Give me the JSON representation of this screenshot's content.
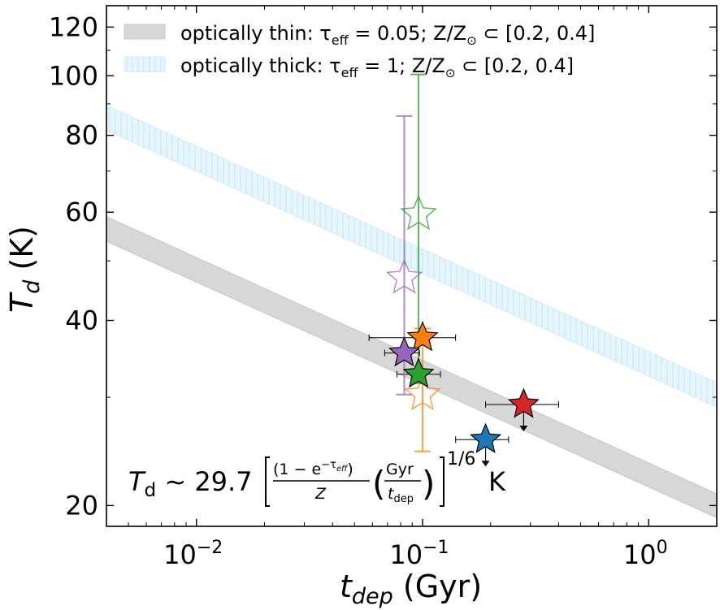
{
  "chart_data": {
    "type": "scatter",
    "x_scale": "log",
    "y_scale": "log",
    "xlim": [
      0.004,
      2.0
    ],
    "ylim": [
      18.5,
      130
    ],
    "x_ticks": [
      {
        "value": 0.01,
        "base": "10",
        "exp": "−2"
      },
      {
        "value": 0.1,
        "base": "10",
        "exp": "−1"
      },
      {
        "value": 1.0,
        "base": "10",
        "exp": "0"
      }
    ],
    "y_ticks": [
      20,
      40,
      60,
      80,
      100,
      120
    ],
    "y_tick_labels": [
      "20",
      "40",
      "60",
      "80",
      "100",
      "120"
    ],
    "xlabel": {
      "main": "t",
      "sub": "dep",
      "unit": " (Gyr)"
    },
    "ylabel": {
      "main": "T",
      "sub": "d",
      "unit": " (K)"
    },
    "legend": {
      "placement": "top-left",
      "entries": [
        {
          "label": "optically thin: τ",
          "sub": "eff",
          "rest": " = 0.05; Z/Z",
          "sun": "⊙",
          "tail": " ⊂ [0.2, 0.4]",
          "color": "#d7d7d7"
        },
        {
          "label": "optically thick: τ",
          "sub": "eff",
          "rest": " = 1; Z/Z",
          "sun": "⊙",
          "tail": " ⊂ [0.2, 0.4]",
          "color": "#e3f4fd"
        }
      ]
    },
    "bands": [
      {
        "name": "optically thin",
        "x": [
          0.004,
          2.0
        ],
        "y_low": [
          53.8,
          19.1
        ],
        "y_high": [
          59.0,
          20.9
        ],
        "color": "#d7d7d7"
      },
      {
        "name": "optically thick",
        "x": [
          0.004,
          2.0
        ],
        "y_low": [
          81.5,
          28.9
        ],
        "y_high": [
          89.5,
          31.7
        ],
        "color": "#e3f4fd"
      }
    ],
    "points": [
      {
        "name": "blue",
        "color": "#1f77b4",
        "x": 0.19,
        "y": 25.6,
        "xerr": [
          0.14,
          0.24
        ],
        "upper_limit": true
      },
      {
        "name": "orange",
        "color": "#ff7f0e",
        "x": 0.1,
        "y": 37.5,
        "xerr": [
          0.058,
          0.14
        ],
        "yerr": [
          24.5,
          38.8
        ],
        "hollow_y": 30.3
      },
      {
        "name": "green",
        "color": "#2ca02c",
        "x": 0.096,
        "y": 32.7,
        "xerr": [
          0.077,
          0.12
        ],
        "yerr": [
          31.6,
          100.5
        ],
        "hollow_y": 59.5
      },
      {
        "name": "red",
        "color": "#d62728",
        "x": 0.28,
        "y": 29.2,
        "xerr": [
          0.19,
          0.4
        ],
        "upper_limit": true
      },
      {
        "name": "purple",
        "color": "#9467bd",
        "x": 0.083,
        "y": 35.4,
        "xerr": [
          0.068,
          0.097
        ],
        "yerr": [
          30.3,
          86.0
        ],
        "hollow_y": 46.9
      }
    ],
    "annotation": {
      "lhs_main": "T",
      "lhs_sub": "d",
      "approx": " ∼ 29.7 ",
      "num_a": "(1 − e",
      "num_exp": "−τ",
      "num_exp_sub": "eff",
      "num_b": ")",
      "den": "Z",
      "frac2_num": "Gyr",
      "frac2_den_main": "t",
      "frac2_den_sub": "dep",
      "power": "1/6",
      "unit": "K"
    }
  }
}
